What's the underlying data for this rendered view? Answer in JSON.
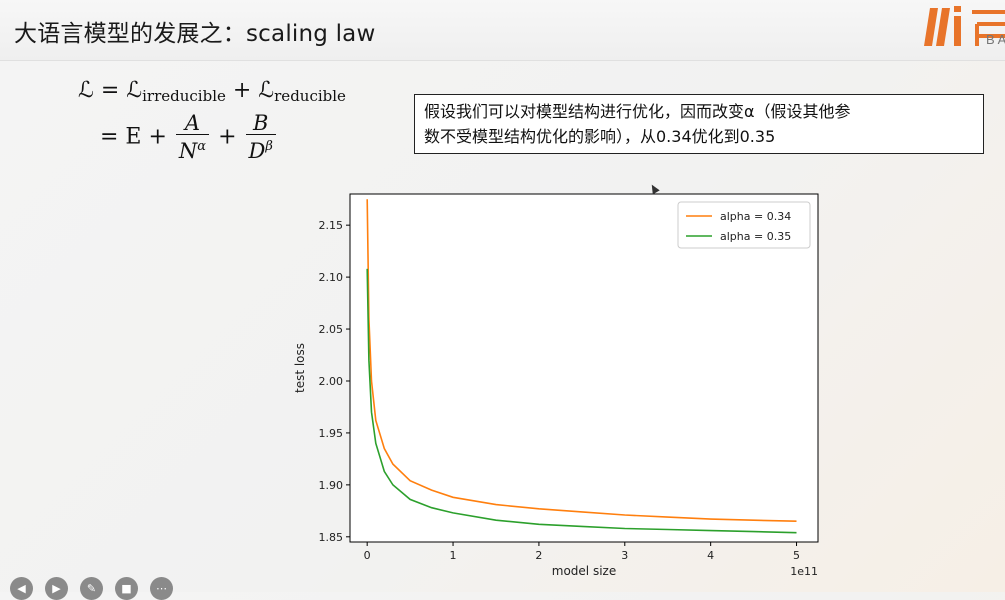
{
  "slide": {
    "title": "大语言模型的发展之：scaling law",
    "logo_text": "BA"
  },
  "formula": {
    "line1_lhs": "ℒ = ℒ",
    "line1_sub1": "irreducible",
    "line1_plus": " + ℒ",
    "line1_sub2": "reducible",
    "line2_prefix": "= E +",
    "frac1_num": "A",
    "frac1_den": "N",
    "frac1_exp": "α",
    "plus2": "+",
    "frac2_num": "B",
    "frac2_den": "D",
    "frac2_exp": "β"
  },
  "annotation": {
    "line1": "假设我们可以对模型结构进行优化，因而改变α（假设其他参",
    "line2": "数不受模型结构优化的影响），从0.34优化到0.35"
  },
  "chart_data": {
    "type": "line",
    "xlabel": "model size",
    "ylabel": "test loss",
    "x_scale_label": "1e11",
    "xlim": [
      -0.2,
      5.25
    ],
    "ylim": [
      1.845,
      2.18
    ],
    "x_ticks": [
      0,
      1,
      2,
      3,
      4,
      5
    ],
    "y_ticks": [
      1.85,
      1.9,
      1.95,
      2.0,
      2.05,
      2.1,
      2.15
    ],
    "y_tick_labels": [
      "1.85",
      "1.90",
      "1.95",
      "2.00",
      "2.05",
      "2.10",
      "2.15"
    ],
    "legend_position": "top-right",
    "grid": false,
    "x": [
      0.0,
      0.02,
      0.05,
      0.1,
      0.2,
      0.3,
      0.5,
      0.75,
      1.0,
      1.5,
      2.0,
      2.5,
      3.0,
      3.5,
      4.0,
      4.5,
      5.0
    ],
    "series": [
      {
        "name": "alpha = 0.34",
        "color": "#ff7f0e",
        "values": [
          2.175,
          2.06,
          2.0,
          1.962,
          1.935,
          1.92,
          1.904,
          1.895,
          1.888,
          1.881,
          1.877,
          1.874,
          1.871,
          1.869,
          1.867,
          1.866,
          1.865
        ]
      },
      {
        "name": "alpha = 0.35",
        "color": "#2ca02c",
        "values": [
          2.108,
          2.02,
          1.97,
          1.94,
          1.913,
          1.9,
          1.886,
          1.878,
          1.873,
          1.866,
          1.862,
          1.86,
          1.858,
          1.857,
          1.856,
          1.855,
          1.854
        ]
      }
    ]
  },
  "toolbar": {
    "icons": [
      "back-icon",
      "play-icon",
      "pen-icon",
      "camera-icon",
      "more-icon"
    ]
  }
}
